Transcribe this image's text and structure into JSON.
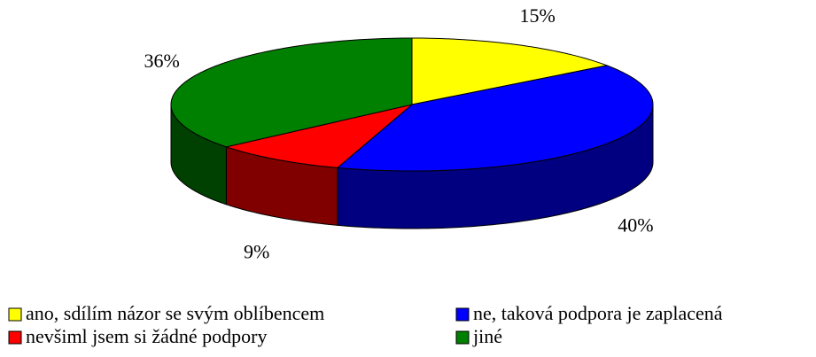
{
  "chart_data": {
    "type": "pie",
    "categories": [
      "ano, sdílím názor se svým oblíbencem",
      "ne, taková podpora je zaplacená",
      "nevšiml jsem si žádné podpory",
      "jiné"
    ],
    "values": [
      15,
      40,
      9,
      36
    ],
    "value_labels": [
      "15%",
      "40%",
      "9%",
      "36%"
    ],
    "colors": [
      "#ffff00",
      "#0000ff",
      "#ff0000",
      "#008000"
    ],
    "side_colors": [
      "#808000",
      "#000080",
      "#800000",
      "#004000"
    ]
  }
}
